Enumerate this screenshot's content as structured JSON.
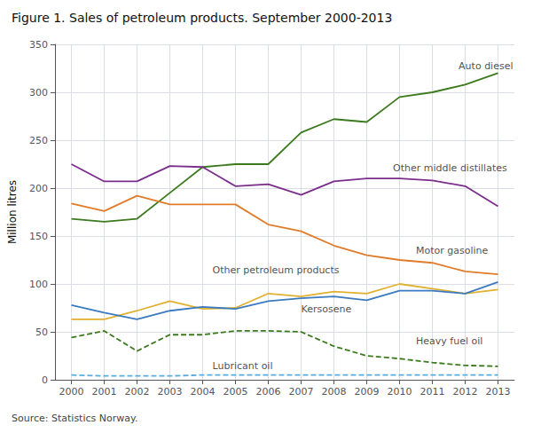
{
  "chart_data": {
    "type": "line",
    "title": "Figure 1. Sales of petroleum products. September 2000-2013",
    "ylabel": "Million litres",
    "source": "Source: Statistics Norway.",
    "x": [
      2000,
      2001,
      2002,
      2003,
      2004,
      2005,
      2006,
      2007,
      2008,
      2009,
      2010,
      2011,
      2012,
      2013
    ],
    "series": [
      {
        "name": "Auto diesel",
        "color": "#3c7a1e",
        "line_style": "solid",
        "values": [
          168,
          165,
          168,
          195,
          222,
          225,
          225,
          258,
          272,
          269,
          295,
          300,
          308,
          320
        ]
      },
      {
        "name": "Other middle distillates",
        "color": "#7b2d8b",
        "line_style": "solid",
        "values": [
          225,
          207,
          207,
          223,
          222,
          202,
          204,
          193,
          207,
          210,
          210,
          208,
          202,
          181
        ]
      },
      {
        "name": "Motor gasoline",
        "color": "#e07b2a",
        "line_style": "solid",
        "values": [
          184,
          176,
          192,
          183,
          183,
          183,
          162,
          155,
          140,
          130,
          125,
          122,
          113,
          110
        ]
      },
      {
        "name": "Other petroleum products",
        "color": "#e0b030",
        "line_style": "solid",
        "values": [
          63,
          63,
          72,
          82,
          74,
          75,
          90,
          87,
          92,
          90,
          100,
          95,
          90,
          94
        ]
      },
      {
        "name": "Kersosene",
        "color": "#3a7abf",
        "line_style": "solid",
        "values": [
          78,
          70,
          63,
          72,
          76,
          74,
          82,
          85,
          87,
          83,
          93,
          93,
          90,
          102
        ]
      },
      {
        "name": "Heavy fuel oil",
        "color": "#3c7a1e",
        "line_style": "dashed",
        "values": [
          44,
          51,
          30,
          47,
          47,
          51,
          51,
          50,
          35,
          25,
          22,
          18,
          15,
          14
        ]
      },
      {
        "name": "Lubricant oil",
        "color": "#5aacdf",
        "line_style": "dashed",
        "values": [
          5,
          4,
          4,
          4,
          5,
          5,
          5,
          5,
          5,
          5,
          5,
          5,
          5,
          5
        ]
      }
    ],
    "annotations": [
      {
        "text": "Auto diesel",
        "x": 2011.8,
        "y": 327
      },
      {
        "text": "Other middle distillates",
        "x": 2009.8,
        "y": 221
      },
      {
        "text": "Motor gasoline",
        "x": 2010.5,
        "y": 135
      },
      {
        "text": "Other petroleum products",
        "x": 2004.3,
        "y": 114
      },
      {
        "text": "Kersosene",
        "x": 2007.0,
        "y": 74
      },
      {
        "text": "Heavy fuel oil",
        "x": 2010.5,
        "y": 40
      },
      {
        "text": "Lubricant oil",
        "x": 2004.3,
        "y": 14
      }
    ],
    "xlim": [
      1999.5,
      2013.5
    ],
    "xticks": [
      2000,
      2001,
      2002,
      2003,
      2004,
      2005,
      2006,
      2007,
      2008,
      2009,
      2010,
      2011,
      2012,
      2013
    ],
    "ylim": [
      0,
      350
    ],
    "yticks": [
      0,
      50,
      100,
      150,
      200,
      250,
      300,
      350
    ],
    "grid": true
  }
}
